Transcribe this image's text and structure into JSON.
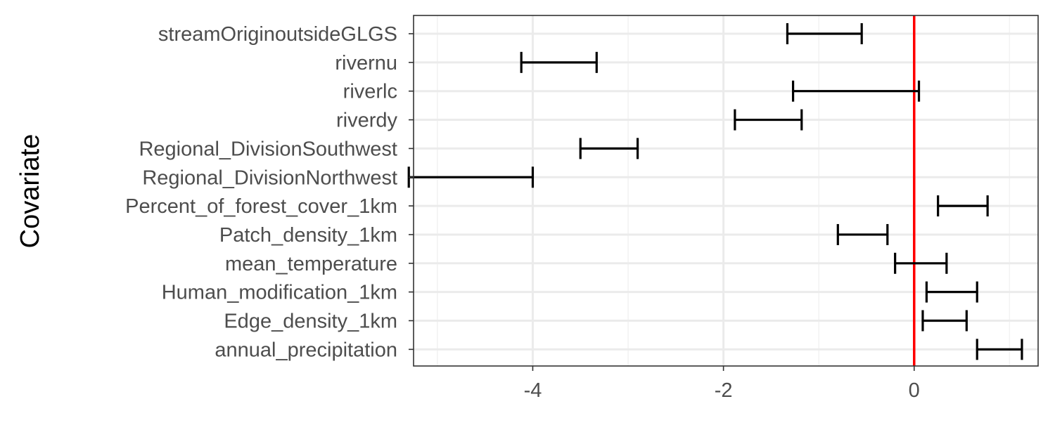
{
  "chart_data": {
    "type": "errorbar",
    "title": "",
    "xlabel": "",
    "ylabel": "Covariate",
    "xlim": [
      -5.25,
      1.3
    ],
    "x_ticks": [
      -4,
      -2,
      0
    ],
    "x_tick_labels": [
      "-4",
      "-2",
      "0"
    ],
    "grid": true,
    "reference_line": {
      "x": 0,
      "color": "#ff0000"
    },
    "categories": [
      "streamOriginoutsideGLGS",
      "rivernu",
      "riverlc",
      "riverdy",
      "Regional_DivisionSouthwest",
      "Regional_DivisionNorthwest",
      "Percent_of_forest_cover_1km",
      "Patch_density_1km",
      "mean_temperature",
      "Human_modification_1km",
      "Edge_density_1km",
      "annual_precipitation"
    ],
    "intervals": [
      {
        "lower": -1.33,
        "upper": -0.55
      },
      {
        "lower": -4.12,
        "upper": -3.33
      },
      {
        "lower": -1.27,
        "upper": 0.05
      },
      {
        "lower": -1.88,
        "upper": -1.18
      },
      {
        "lower": -3.5,
        "upper": -2.9
      },
      {
        "lower": -5.3,
        "upper": -4.0
      },
      {
        "lower": 0.25,
        "upper": 0.77
      },
      {
        "lower": -0.8,
        "upper": -0.28
      },
      {
        "lower": -0.2,
        "upper": 0.34
      },
      {
        "lower": 0.13,
        "upper": 0.66
      },
      {
        "lower": 0.09,
        "upper": 0.55
      },
      {
        "lower": 0.66,
        "upper": 1.13
      }
    ],
    "colors": {
      "errorbar": "#000000",
      "reference_line": "#ff0000",
      "grid": "#ebebeb",
      "border": "#333333",
      "tick_label": "#4d4d4d"
    }
  }
}
